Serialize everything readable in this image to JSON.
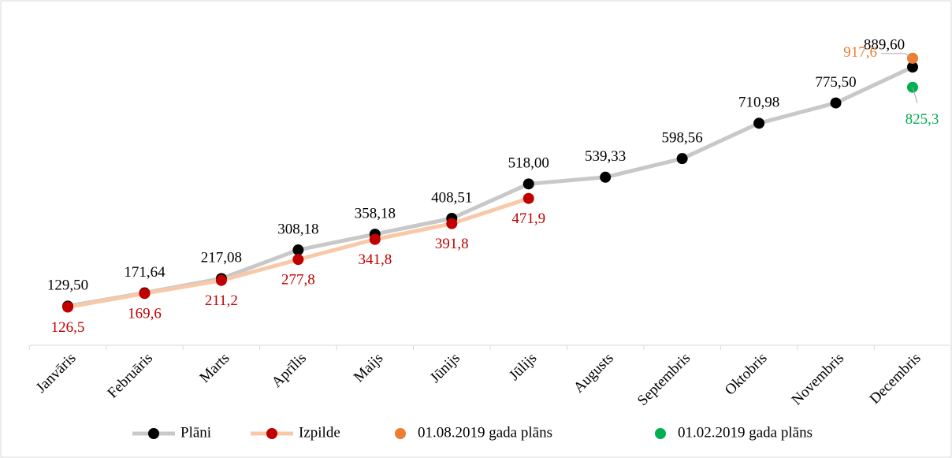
{
  "chart_data": {
    "type": "line",
    "categories": [
      "Janvāris",
      "Februāris",
      "Marts",
      "Aprīlis",
      "Maijs",
      "Jūnijs",
      "Jūlijs",
      "Augusts",
      "Septembris",
      "Oktobris",
      "Novembris",
      "Decembris"
    ],
    "series": [
      {
        "name": "Plāni",
        "color": "#000000",
        "line_color": "#c8c8c8",
        "values": [
          129.5,
          171.64,
          217.08,
          308.18,
          358.18,
          408.51,
          518.0,
          539.33,
          598.56,
          710.98,
          775.5,
          889.6
        ],
        "value_labels": [
          "129,50",
          "171,64",
          "217,08",
          "308,18",
          "358,18",
          "408,51",
          "518,00",
          "539,33",
          "598,56",
          "710,98",
          "775,50",
          "889,60"
        ]
      },
      {
        "name": "Izpilde",
        "color": "#c00000",
        "line_color": "#f8c9a8",
        "values": [
          126.5,
          169.6,
          211.2,
          277.8,
          341.8,
          391.8,
          471.9,
          null,
          null,
          null,
          null,
          null
        ],
        "value_labels": [
          "126,5",
          "169,6",
          "211,2",
          "277,8",
          "341,8",
          "391,8",
          "471,9",
          null,
          null,
          null,
          null,
          null
        ]
      },
      {
        "name": "01.08.2019 gada plāns",
        "color": "#ed7d31",
        "values": [
          null,
          null,
          null,
          null,
          null,
          null,
          null,
          null,
          null,
          null,
          null,
          917.6
        ],
        "value_labels": [
          null,
          null,
          null,
          null,
          null,
          null,
          null,
          null,
          null,
          null,
          null,
          "917,6"
        ]
      },
      {
        "name": "01.02.2019 gada plāns",
        "color": "#00b050",
        "values": [
          null,
          null,
          null,
          null,
          null,
          null,
          null,
          null,
          null,
          null,
          null,
          825.3
        ],
        "value_labels": [
          null,
          null,
          null,
          null,
          null,
          null,
          null,
          null,
          null,
          null,
          null,
          "825,3"
        ]
      }
    ],
    "ylim": [
      0,
      1000
    ],
    "legend": "bottom"
  }
}
